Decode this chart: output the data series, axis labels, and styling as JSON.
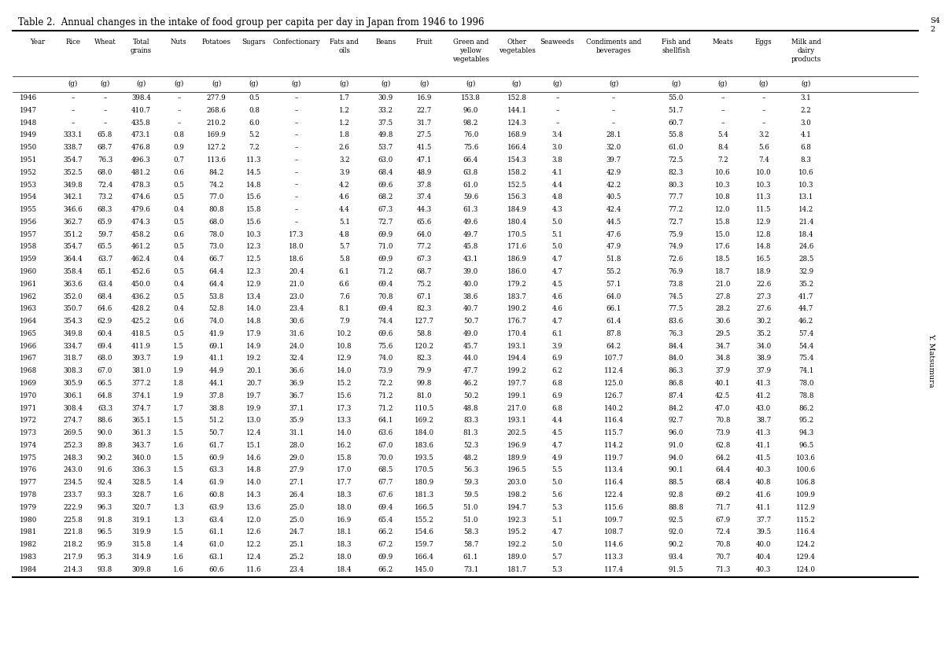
{
  "title": "Table 2.  Annual changes in the intake of food group per capita per day in Japan from 1946 to 1996",
  "side_text": "Y. Matsumura",
  "page_num": "S4\n2",
  "headers_row1": [
    "Year",
    "Rice",
    "Wheat",
    "Total\ngrains",
    "Nuts",
    "Potatoes",
    "Sugars",
    "Confectionary",
    "Fats and\noils",
    "Beans",
    "Fruit",
    "Green and\nyellow\nvegetables",
    "Other\nvegetables",
    "Seaweeds",
    "Condiments and\nbeverages",
    "Fish and\nshellfish",
    "Meats",
    "Eggs",
    "Milk and\ndairy\nproducts"
  ],
  "unit_row": [
    "",
    "(g)",
    "(g)",
    "(g)",
    "(g)",
    "(g)",
    "(g)",
    "(g)",
    "(g)",
    "(g)",
    "(g)",
    "(g)",
    "(g)",
    "(g)",
    "(g)",
    "(g)",
    "(g)",
    "(g)",
    "(g)"
  ],
  "rows": [
    [
      "1946",
      "–",
      "–",
      "398.4",
      "–",
      "277.9",
      "0.5",
      "–",
      "1.7",
      "30.9",
      "16.9",
      "153.8",
      "152.8",
      "–",
      "–",
      "55.0",
      "–",
      "–",
      "3.1"
    ],
    [
      "1947",
      "–",
      "–",
      "410.7",
      "–",
      "268.6",
      "0.8",
      "–",
      "1.2",
      "33.2",
      "22.7",
      "96.0",
      "144.1",
      "–",
      "–",
      "51.7",
      "–",
      "–",
      "2.2"
    ],
    [
      "1948",
      "–",
      "–",
      "435.8",
      "–",
      "210.2",
      "6.0",
      "–",
      "1.2",
      "37.5",
      "31.7",
      "98.2",
      "124.3",
      "–",
      "–",
      "60.7",
      "–",
      "–",
      "3.0"
    ],
    [
      "1949",
      "333.1",
      "65.8",
      "473.1",
      "0.8",
      "169.9",
      "5.2",
      "–",
      "1.8",
      "49.8",
      "27.5",
      "76.0",
      "168.9",
      "3.4",
      "28.1",
      "55.8",
      "5.4",
      "3.2",
      "4.1"
    ],
    [
      "1950",
      "338.7",
      "68.7",
      "476.8",
      "0.9",
      "127.2",
      "7.2",
      "–",
      "2.6",
      "53.7",
      "41.5",
      "75.6",
      "166.4",
      "3.0",
      "32.0",
      "61.0",
      "8.4",
      "5.6",
      "6.8"
    ],
    [
      "1951",
      "354.7",
      "76.3",
      "496.3",
      "0.7",
      "113.6",
      "11.3",
      "–",
      "3.2",
      "63.0",
      "47.1",
      "66.4",
      "154.3",
      "3.8",
      "39.7",
      "72.5",
      "7.2",
      "7.4",
      "8.3"
    ],
    [
      "1952",
      "352.5",
      "68.0",
      "481.2",
      "0.6",
      "84.2",
      "14.5",
      "–",
      "3.9",
      "68.4",
      "48.9",
      "63.8",
      "158.2",
      "4.1",
      "42.9",
      "82.3",
      "10.6",
      "10.0",
      "10.6"
    ],
    [
      "1953",
      "349.8",
      "72.4",
      "478.3",
      "0.5",
      "74.2",
      "14.8",
      "–",
      "4.2",
      "69.6",
      "37.8",
      "61.0",
      "152.5",
      "4.4",
      "42.2",
      "80.3",
      "10.3",
      "10.3",
      "10.3"
    ],
    [
      "1954",
      "342.1",
      "73.2",
      "474.6",
      "0.5",
      "77.0",
      "15.6",
      "–",
      "4.6",
      "68.2",
      "37.4",
      "59.6",
      "156.3",
      "4.8",
      "40.5",
      "77.7",
      "10.8",
      "11.3",
      "13.1"
    ],
    [
      "1955",
      "346.6",
      "68.3",
      "479.6",
      "0.4",
      "80.8",
      "15.8",
      "–",
      "4.4",
      "67.3",
      "44.3",
      "61.3",
      "184.9",
      "4.3",
      "42.4",
      "77.2",
      "12.0",
      "11.5",
      "14.2"
    ],
    [
      "1956",
      "362.7",
      "65.9",
      "474.3",
      "0.5",
      "68.0",
      "15.6",
      "–",
      "5.1",
      "72.7",
      "65.6",
      "49.6",
      "180.4",
      "5.0",
      "44.5",
      "72.7",
      "15.8",
      "12.9",
      "21.4"
    ],
    [
      "1957",
      "351.2",
      "59.7",
      "458.2",
      "0.6",
      "78.0",
      "10.3",
      "17.3",
      "4.8",
      "69.9",
      "64.0",
      "49.7",
      "170.5",
      "5.1",
      "47.6",
      "75.9",
      "15.0",
      "12.8",
      "18.4"
    ],
    [
      "1958",
      "354.7",
      "65.5",
      "461.2",
      "0.5",
      "73.0",
      "12.3",
      "18.0",
      "5.7",
      "71.0",
      "77.2",
      "45.8",
      "171.6",
      "5.0",
      "47.9",
      "74.9",
      "17.6",
      "14.8",
      "24.6"
    ],
    [
      "1959",
      "364.4",
      "63.7",
      "462.4",
      "0.4",
      "66.7",
      "12.5",
      "18.6",
      "5.8",
      "69.9",
      "67.3",
      "43.1",
      "186.9",
      "4.7",
      "51.8",
      "72.6",
      "18.5",
      "16.5",
      "28.5"
    ],
    [
      "1960",
      "358.4",
      "65.1",
      "452.6",
      "0.5",
      "64.4",
      "12.3",
      "20.4",
      "6.1",
      "71.2",
      "68.7",
      "39.0",
      "186.0",
      "4.7",
      "55.2",
      "76.9",
      "18.7",
      "18.9",
      "32.9"
    ],
    [
      "1961",
      "363.6",
      "63.4",
      "450.0",
      "0.4",
      "64.4",
      "12.9",
      "21.0",
      "6.6",
      "69.4",
      "75.2",
      "40.0",
      "179.2",
      "4.5",
      "57.1",
      "73.8",
      "21.0",
      "22.6",
      "35.2"
    ],
    [
      "1962",
      "352.0",
      "68.4",
      "436.2",
      "0.5",
      "53.8",
      "13.4",
      "23.0",
      "7.6",
      "70.8",
      "67.1",
      "38.6",
      "183.7",
      "4.6",
      "64.0",
      "74.5",
      "27.8",
      "27.3",
      "41.7"
    ],
    [
      "1963",
      "350.7",
      "64.6",
      "428.2",
      "0.4",
      "52.8",
      "14.0",
      "23.4",
      "8.1",
      "69.4",
      "82.3",
      "40.7",
      "190.2",
      "4.6",
      "66.1",
      "77.5",
      "28.2",
      "27.6",
      "44.7"
    ],
    [
      "1964",
      "354.3",
      "62.9",
      "425.2",
      "0.6",
      "74.0",
      "14.8",
      "30.6",
      "7.9",
      "74.4",
      "127.7",
      "50.7",
      "176.7",
      "4.7",
      "61.4",
      "83.6",
      "30.6",
      "30.2",
      "46.2"
    ],
    [
      "1965",
      "349.8",
      "60.4",
      "418.5",
      "0.5",
      "41.9",
      "17.9",
      "31.6",
      "10.2",
      "69.6",
      "58.8",
      "49.0",
      "170.4",
      "6.1",
      "87.8",
      "76.3",
      "29.5",
      "35.2",
      "57.4"
    ],
    [
      "1966",
      "334.7",
      "69.4",
      "411.9",
      "1.5",
      "69.1",
      "14.9",
      "24.0",
      "10.8",
      "75.6",
      "120.2",
      "45.7",
      "193.1",
      "3.9",
      "64.2",
      "84.4",
      "34.7",
      "34.0",
      "54.4"
    ],
    [
      "1967",
      "318.7",
      "68.0",
      "393.7",
      "1.9",
      "41.1",
      "19.2",
      "32.4",
      "12.9",
      "74.0",
      "82.3",
      "44.0",
      "194.4",
      "6.9",
      "107.7",
      "84.0",
      "34.8",
      "38.9",
      "75.4"
    ],
    [
      "1968",
      "308.3",
      "67.0",
      "381.0",
      "1.9",
      "44.9",
      "20.1",
      "36.6",
      "14.0",
      "73.9",
      "79.9",
      "47.7",
      "199.2",
      "6.2",
      "112.4",
      "86.3",
      "37.9",
      "37.9",
      "74.1"
    ],
    [
      "1969",
      "305.9",
      "66.5",
      "377.2",
      "1.8",
      "44.1",
      "20.7",
      "36.9",
      "15.2",
      "72.2",
      "99.8",
      "46.2",
      "197.7",
      "6.8",
      "125.0",
      "86.8",
      "40.1",
      "41.3",
      "78.0"
    ],
    [
      "1970",
      "306.1",
      "64.8",
      "374.1",
      "1.9",
      "37.8",
      "19.7",
      "36.7",
      "15.6",
      "71.2",
      "81.0",
      "50.2",
      "199.1",
      "6.9",
      "126.7",
      "87.4",
      "42.5",
      "41.2",
      "78.8"
    ],
    [
      "1971",
      "308.4",
      "63.3",
      "374.7",
      "1.7",
      "38.8",
      "19.9",
      "37.1",
      "17.3",
      "71.2",
      "110.5",
      "48.8",
      "217.0",
      "6.8",
      "140.2",
      "84.2",
      "47.0",
      "43.0",
      "86.2"
    ],
    [
      "1972",
      "274.7",
      "88.6",
      "365.1",
      "1.5",
      "51.2",
      "13.0",
      "35.9",
      "13.3",
      "64.1",
      "169.2",
      "83.3",
      "193.1",
      "4.4",
      "116.4",
      "92.7",
      "70.8",
      "38.7",
      "95.2"
    ],
    [
      "1973",
      "269.5",
      "90.0",
      "361.3",
      "1.5",
      "50.7",
      "12.4",
      "31.1",
      "14.0",
      "63.6",
      "184.0",
      "81.3",
      "202.5",
      "4.5",
      "115.7",
      "96.0",
      "73.9",
      "41.3",
      "94.3"
    ],
    [
      "1974",
      "252.3",
      "89.8",
      "343.7",
      "1.6",
      "61.7",
      "15.1",
      "28.0",
      "16.2",
      "67.0",
      "183.6",
      "52.3",
      "196.9",
      "4.7",
      "114.2",
      "91.0",
      "62.8",
      "41.1",
      "96.5"
    ],
    [
      "1975",
      "248.3",
      "90.2",
      "340.0",
      "1.5",
      "60.9",
      "14.6",
      "29.0",
      "15.8",
      "70.0",
      "193.5",
      "48.2",
      "189.9",
      "4.9",
      "119.7",
      "94.0",
      "64.2",
      "41.5",
      "103.6"
    ],
    [
      "1976",
      "243.0",
      "91.6",
      "336.3",
      "1.5",
      "63.3",
      "14.8",
      "27.9",
      "17.0",
      "68.5",
      "170.5",
      "56.3",
      "196.5",
      "5.5",
      "113.4",
      "90.1",
      "64.4",
      "40.3",
      "100.6"
    ],
    [
      "1977",
      "234.5",
      "92.4",
      "328.5",
      "1.4",
      "61.9",
      "14.0",
      "27.1",
      "17.7",
      "67.7",
      "180.9",
      "59.3",
      "203.0",
      "5.0",
      "116.4",
      "88.5",
      "68.4",
      "40.8",
      "106.8"
    ],
    [
      "1978",
      "233.7",
      "93.3",
      "328.7",
      "1.6",
      "60.8",
      "14.3",
      "26.4",
      "18.3",
      "67.6",
      "181.3",
      "59.5",
      "198.2",
      "5.6",
      "122.4",
      "92.8",
      "69.2",
      "41.6",
      "109.9"
    ],
    [
      "1979",
      "222.9",
      "96.3",
      "320.7",
      "1.3",
      "63.9",
      "13.6",
      "25.0",
      "18.0",
      "69.4",
      "166.5",
      "51.0",
      "194.7",
      "5.3",
      "115.6",
      "88.8",
      "71.7",
      "41.1",
      "112.9"
    ],
    [
      "1980",
      "225.8",
      "91.8",
      "319.1",
      "1.3",
      "63.4",
      "12.0",
      "25.0",
      "16.9",
      "65.4",
      "155.2",
      "51.0",
      "192.3",
      "5.1",
      "109.7",
      "92.5",
      "67.9",
      "37.7",
      "115.2"
    ],
    [
      "1981",
      "221.8",
      "96.5",
      "319.9",
      "1.5",
      "61.1",
      "12.6",
      "24.7",
      "18.1",
      "66.2",
      "154.6",
      "58.3",
      "195.2",
      "4.7",
      "108.7",
      "92.0",
      "72.4",
      "39.5",
      "116.4"
    ],
    [
      "1982",
      "218.2",
      "95.9",
      "315.8",
      "1.4",
      "61.0",
      "12.2",
      "25.1",
      "18.3",
      "67.2",
      "159.7",
      "58.7",
      "192.2",
      "5.0",
      "114.6",
      "90.2",
      "70.8",
      "40.0",
      "124.2"
    ],
    [
      "1983",
      "217.9",
      "95.3",
      "314.9",
      "1.6",
      "63.1",
      "12.4",
      "25.2",
      "18.0",
      "69.9",
      "166.4",
      "61.1",
      "189.0",
      "5.7",
      "113.3",
      "93.4",
      "70.7",
      "40.4",
      "129.4"
    ],
    [
      "1984",
      "214.3",
      "93.8",
      "309.8",
      "1.6",
      "60.6",
      "11.6",
      "23.4",
      "18.4",
      "66.2",
      "145.0",
      "73.1",
      "181.7",
      "5.3",
      "117.4",
      "91.5",
      "71.3",
      "40.3",
      "124.0"
    ]
  ]
}
